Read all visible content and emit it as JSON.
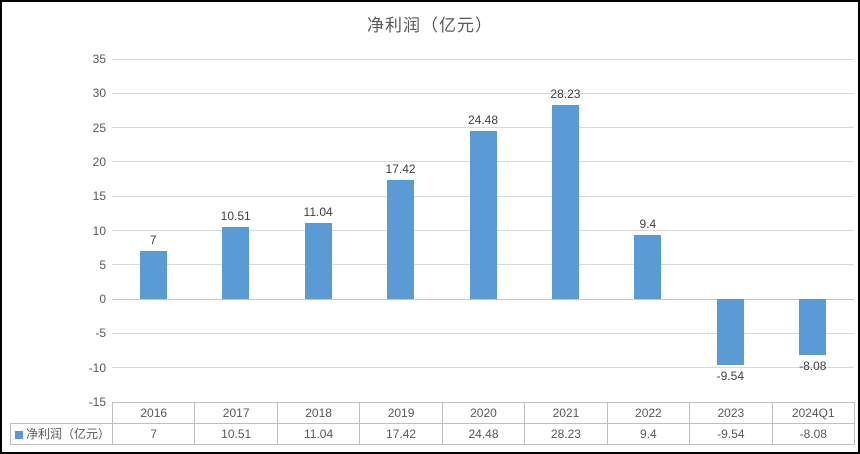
{
  "title": "净利润（亿元）",
  "colors": {
    "bar": "#5B9BD5",
    "gridline": "#D9D9D9",
    "zero_axis": "#C6C6C6",
    "table_border": "#BFBFBF",
    "axis_text": "#595959",
    "data_label_text": "#3F3F3F",
    "title_text": "#595959",
    "canvas_border": "#000000",
    "background": "#FFFFFF"
  },
  "chart_data": {
    "type": "bar",
    "title": "净利润（亿元）",
    "categories": [
      "2016",
      "2017",
      "2018",
      "2019",
      "2020",
      "2021",
      "2022",
      "2023",
      "2024Q1"
    ],
    "series": [
      {
        "name": "净利润（亿元）",
        "values": [
          7,
          10.51,
          11.04,
          17.42,
          24.48,
          28.23,
          9.4,
          -9.54,
          -8.08
        ],
        "value_labels": [
          "7",
          "10.51",
          "11.04",
          "17.42",
          "24.48",
          "28.23",
          "9.4",
          "-9.54",
          "-8.08"
        ],
        "color": "#5B9BD5"
      }
    ],
    "xlabel": "",
    "ylabel": "",
    "ylim": [
      -15,
      35
    ],
    "ytick_step": 5,
    "yticks": [
      35,
      30,
      25,
      20,
      15,
      10,
      5,
      0,
      -5,
      -10,
      -15
    ],
    "grid": true,
    "legend_position": "data-table-left",
    "data_table_shown": true
  }
}
